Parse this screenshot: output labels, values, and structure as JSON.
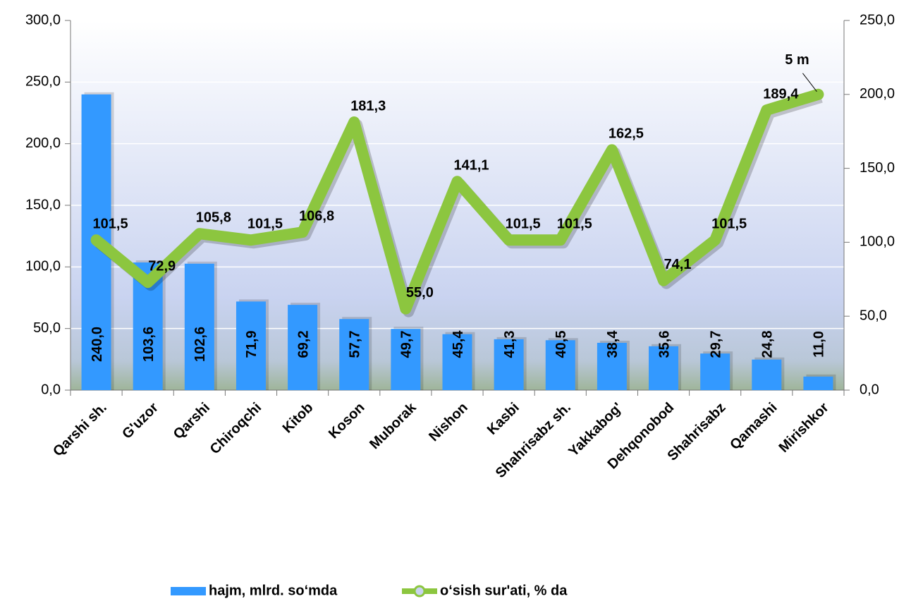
{
  "chart_data": {
    "type": "bar_line",
    "categories": [
      "Qarshi sh.",
      "G'uzor",
      "Qarshi",
      "Chiroqchi",
      "Kitob",
      "Koson",
      "Muborak",
      "Nishon",
      "Kasbi",
      "Shahrisabz sh.",
      "Yakkabog'",
      "Dehqonobod",
      "Shahrisabz",
      "Qamashi",
      "Mirishkor"
    ],
    "series": [
      {
        "name": "hajm, mlrd. so‘mda",
        "color": "#3399ff",
        "type": "bar",
        "values": [
          240.0,
          103.6,
          102.6,
          71.9,
          69.2,
          57.7,
          49.7,
          45.4,
          41.3,
          40.5,
          38.4,
          35.6,
          29.7,
          24.8,
          11.0
        ],
        "value_labels": [
          "240,0",
          "103,6",
          "102,6",
          "71,9",
          "69,2",
          "57,7",
          "49,7",
          "45,4",
          "41,3",
          "40,5",
          "38,4",
          "35,6",
          "29,7",
          "24,8",
          "11,0"
        ]
      },
      {
        "name": "o‘sish sur'ati, % da",
        "color": "#8cc63f",
        "type": "line",
        "axis": "y2",
        "values": [
          101.5,
          72.9,
          105.8,
          101.5,
          106.8,
          181.3,
          55.0,
          141.1,
          101.5,
          101.5,
          162.5,
          74.1,
          101.5,
          189.4,
          200
        ],
        "value_labels": [
          "101,5",
          "72,9",
          "105,8",
          "101,5",
          "106,8",
          "181,3",
          "55,0",
          "141,1",
          "101,5",
          "101,5",
          "162,5",
          "74,1",
          "101,5",
          "189,4",
          null
        ]
      }
    ],
    "annotation": "5 m",
    "ylim": [
      0,
      300
    ],
    "yticks": [
      {
        "value": 0,
        "label": "0,0"
      },
      {
        "value": 50,
        "label": "50,0"
      },
      {
        "value": 100,
        "label": "100,0"
      },
      {
        "value": 150,
        "label": "150,0"
      },
      {
        "value": 200,
        "label": "200,0"
      },
      {
        "value": 250,
        "label": "250,0"
      },
      {
        "value": 300,
        "label": "300,0"
      }
    ],
    "y2lim": [
      0,
      250
    ],
    "y2ticks": [
      {
        "value": 0,
        "label": "0,0"
      },
      {
        "value": 50,
        "label": "50,0"
      },
      {
        "value": 100,
        "label": "100,0"
      },
      {
        "value": 150,
        "label": "150,0"
      },
      {
        "value": 200,
        "label": "200,0"
      },
      {
        "value": 250,
        "label": "250,0"
      }
    ],
    "grid": true,
    "legend": "bottom"
  }
}
